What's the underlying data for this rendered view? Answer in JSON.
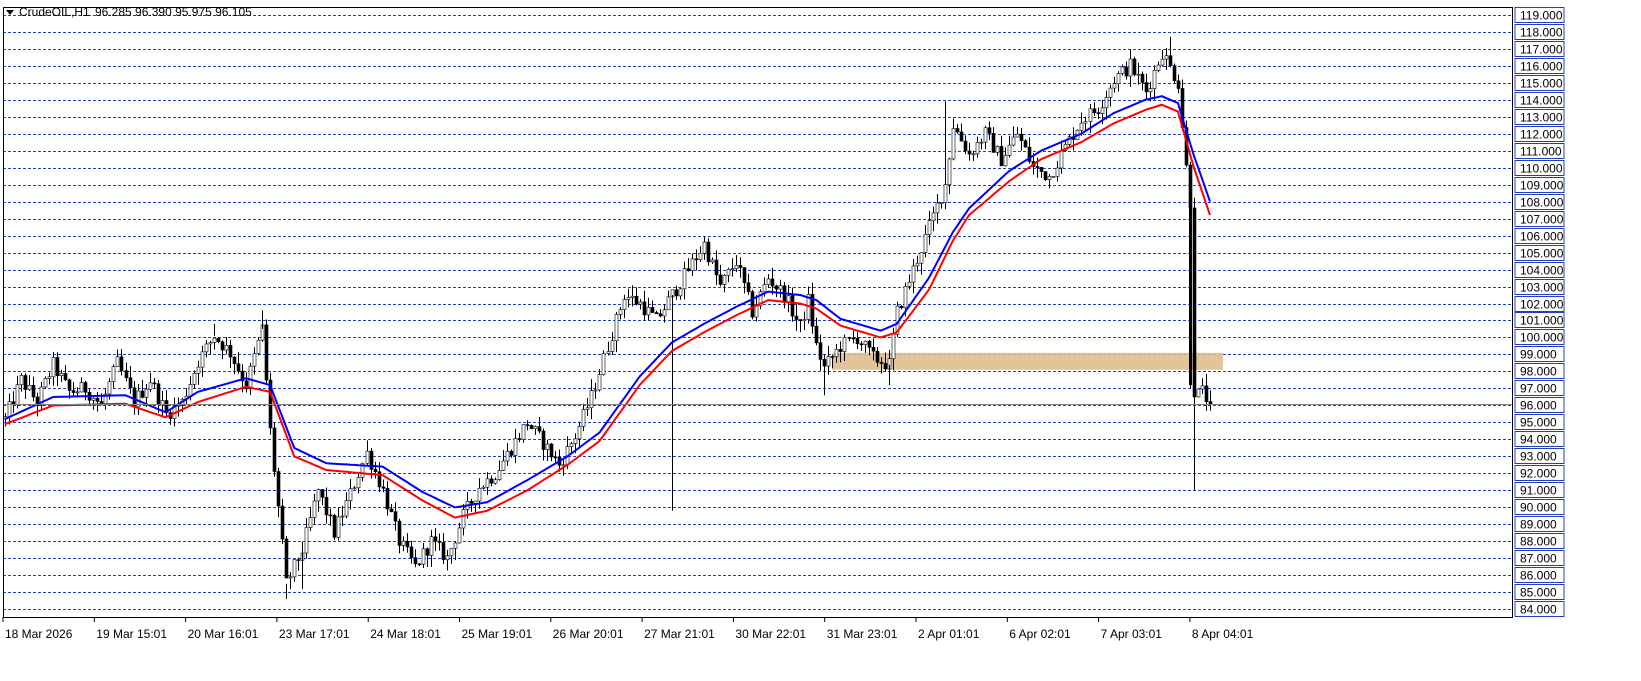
{
  "header": {
    "symbol": "CrudeOIL,H1",
    "ohlc": "96.285 96.390 95.975 96.105",
    "menu_icon": "triangle-down-icon"
  },
  "colors": {
    "background": "#ffffff",
    "grid": "#1f3fbf",
    "bull": "#000000",
    "bear": "#000000",
    "ma_fast": "#0000ff",
    "ma_slow": "#ff0000",
    "zone": "#deb887",
    "axis_label_bg": "#ffffff",
    "axis_label_border": "#1f3fbf"
  },
  "chart_data": {
    "type": "candlestick",
    "timeframe": "H1",
    "ylim": [
      84,
      119
    ],
    "grid": true,
    "y_ticks": [
      "119.000",
      "118.000",
      "117.000",
      "116.000",
      "115.000",
      "114.000",
      "113.000",
      "112.000",
      "111.000",
      "110.000",
      "109.000",
      "108.000",
      "107.000",
      "106.000",
      "105.000",
      "104.000",
      "103.000",
      "102.000",
      "101.000",
      "100.000",
      "99.000",
      "98.000",
      "97.000",
      "96.000",
      "95.000",
      "94.000",
      "93.000",
      "92.000",
      "91.000",
      "90.000",
      "89.000",
      "88.000",
      "87.000",
      "86.000",
      "85.000",
      "84.000"
    ],
    "x_labels": [
      "18 Mar 2026",
      "19 Mar 15:01",
      "20 Mar 16:01",
      "23 Mar 17:01",
      "24 Mar 18:01",
      "25 Mar 19:01",
      "26 Mar 20:01",
      "27 Mar 21:01",
      "30 Mar 22:01",
      "31 Mar 23:01",
      "2 Apr 01:01",
      "6 Apr 02:01",
      "7 Apr 03:01",
      "8 Apr 04:01"
    ],
    "current_price": 96.105,
    "zone": {
      "from_index": 206,
      "to_index": 292,
      "low": 98.1,
      "high": 99.1
    },
    "price_path": [
      [
        0,
        95.2
      ],
      [
        4,
        97.5
      ],
      [
        8,
        96.2
      ],
      [
        12,
        98.4
      ],
      [
        16,
        96.8
      ],
      [
        20,
        97.0
      ],
      [
        24,
        96.0
      ],
      [
        28,
        98.5
      ],
      [
        32,
        96.2
      ],
      [
        36,
        97.5
      ],
      [
        40,
        95.5
      ],
      [
        44,
        96.2
      ],
      [
        48,
        98.6
      ],
      [
        52,
        100.1
      ],
      [
        56,
        99.1
      ],
      [
        60,
        97.2
      ],
      [
        64,
        100.5
      ],
      [
        66,
        94.5
      ],
      [
        70,
        85.5
      ],
      [
        74,
        87.5
      ],
      [
        78,
        91.0
      ],
      [
        82,
        88.5
      ],
      [
        86,
        90.8
      ],
      [
        90,
        93.2
      ],
      [
        94,
        91.0
      ],
      [
        98,
        88.0
      ],
      [
        102,
        86.5
      ],
      [
        106,
        88.0
      ],
      [
        110,
        87.0
      ],
      [
        114,
        89.5
      ],
      [
        118,
        91.2
      ],
      [
        122,
        92.0
      ],
      [
        126,
        93.5
      ],
      [
        130,
        95.0
      ],
      [
        134,
        93.8
      ],
      [
        138,
        92.5
      ],
      [
        142,
        94.2
      ],
      [
        146,
        96.5
      ],
      [
        150,
        99.5
      ],
      [
        154,
        102.5
      ],
      [
        158,
        102.0
      ],
      [
        162,
        101.0
      ],
      [
        166,
        102.5
      ],
      [
        170,
        104.0
      ],
      [
        174,
        105.5
      ],
      [
        178,
        103.0
      ],
      [
        182,
        104.5
      ],
      [
        186,
        101.5
      ],
      [
        190,
        103.5
      ],
      [
        194,
        102.5
      ],
      [
        198,
        100.6
      ],
      [
        200,
        102.2
      ],
      [
        202,
        99.5
      ],
      [
        204,
        98.2
      ],
      [
        208,
        99.5
      ],
      [
        212,
        100.0
      ],
      [
        216,
        98.8
      ],
      [
        220,
        98.4
      ],
      [
        222,
        101.5
      ],
      [
        226,
        104.0
      ],
      [
        230,
        106.5
      ],
      [
        234,
        109.0
      ],
      [
        236,
        112.5
      ],
      [
        240,
        110.8
      ],
      [
        244,
        112.0
      ],
      [
        248,
        110.5
      ],
      [
        252,
        112.0
      ],
      [
        256,
        110.0
      ],
      [
        260,
        109.5
      ],
      [
        264,
        111.2
      ],
      [
        268,
        112.8
      ],
      [
        272,
        113.5
      ],
      [
        276,
        115.2
      ],
      [
        280,
        116.0
      ],
      [
        284,
        114.5
      ],
      [
        288,
        116.8
      ],
      [
        292,
        115.0
      ],
      [
        294,
        110.0
      ],
      [
        295,
        108.0
      ],
      [
        296,
        96.5
      ],
      [
        298,
        96.8
      ],
      [
        300,
        96.1
      ]
    ],
    "ma_fast_path": [
      [
        0,
        95.2
      ],
      [
        12,
        96.5
      ],
      [
        30,
        96.6
      ],
      [
        40,
        95.6
      ],
      [
        48,
        96.8
      ],
      [
        60,
        97.6
      ],
      [
        66,
        97.2
      ],
      [
        72,
        93.5
      ],
      [
        80,
        92.6
      ],
      [
        94,
        92.4
      ],
      [
        104,
        90.9
      ],
      [
        112,
        90.0
      ],
      [
        120,
        90.3
      ],
      [
        130,
        91.6
      ],
      [
        140,
        93.0
      ],
      [
        148,
        94.4
      ],
      [
        158,
        97.7
      ],
      [
        166,
        99.7
      ],
      [
        174,
        100.8
      ],
      [
        182,
        101.8
      ],
      [
        190,
        102.7
      ],
      [
        198,
        102.5
      ],
      [
        202,
        102.2
      ],
      [
        208,
        101.1
      ],
      [
        218,
        100.4
      ],
      [
        222,
        100.8
      ],
      [
        230,
        103.5
      ],
      [
        236,
        106.2
      ],
      [
        240,
        107.6
      ],
      [
        250,
        109.8
      ],
      [
        258,
        111.0
      ],
      [
        268,
        112.0
      ],
      [
        276,
        113.2
      ],
      [
        284,
        114.0
      ],
      [
        288,
        114.2
      ],
      [
        292,
        113.8
      ],
      [
        296,
        110.7
      ],
      [
        300,
        108.0
      ]
    ],
    "ma_slow_path": [
      [
        0,
        94.9
      ],
      [
        12,
        96.0
      ],
      [
        30,
        96.1
      ],
      [
        40,
        95.3
      ],
      [
        48,
        96.2
      ],
      [
        60,
        97.1
      ],
      [
        66,
        96.8
      ],
      [
        72,
        93.0
      ],
      [
        80,
        92.2
      ],
      [
        94,
        91.9
      ],
      [
        104,
        90.4
      ],
      [
        112,
        89.4
      ],
      [
        120,
        89.8
      ],
      [
        130,
        91.0
      ],
      [
        140,
        92.5
      ],
      [
        148,
        93.9
      ],
      [
        158,
        97.2
      ],
      [
        166,
        99.2
      ],
      [
        174,
        100.3
      ],
      [
        182,
        101.3
      ],
      [
        190,
        102.2
      ],
      [
        198,
        102.0
      ],
      [
        202,
        101.7
      ],
      [
        208,
        100.7
      ],
      [
        218,
        100.0
      ],
      [
        222,
        100.3
      ],
      [
        230,
        102.8
      ],
      [
        236,
        105.7
      ],
      [
        240,
        107.2
      ],
      [
        250,
        109.2
      ],
      [
        258,
        110.5
      ],
      [
        268,
        111.5
      ],
      [
        276,
        112.6
      ],
      [
        284,
        113.4
      ],
      [
        288,
        113.7
      ],
      [
        292,
        113.3
      ],
      [
        296,
        110.0
      ],
      [
        300,
        107.2
      ]
    ]
  }
}
